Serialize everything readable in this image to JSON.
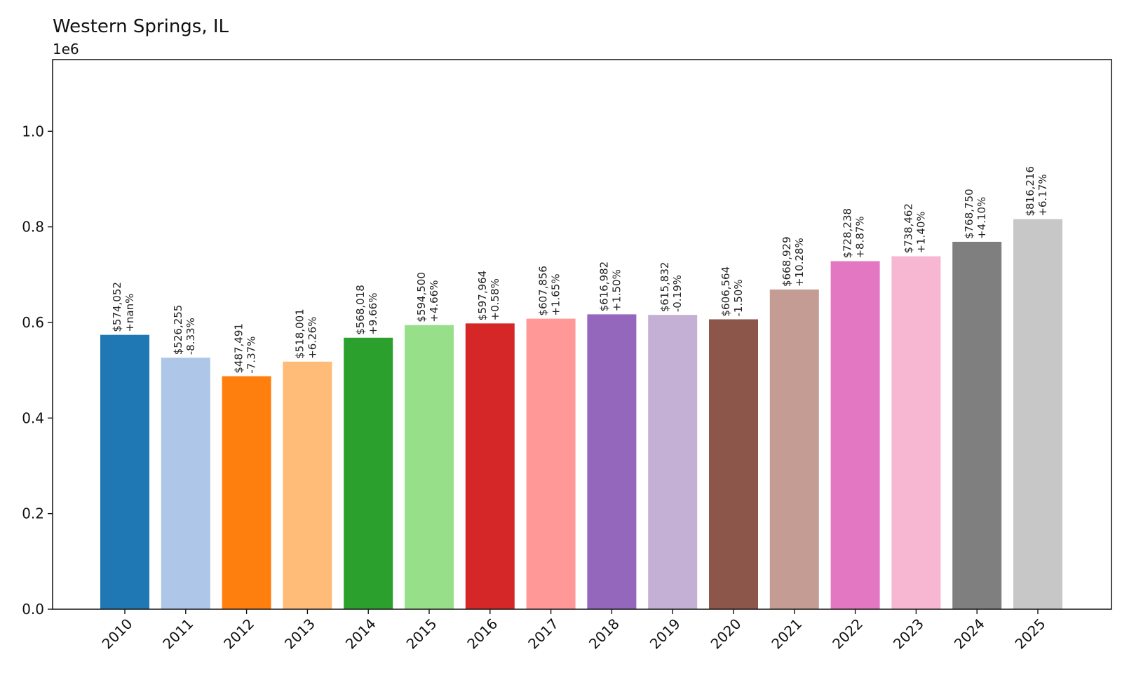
{
  "chart_data": {
    "type": "bar",
    "title": "Western Springs, IL",
    "xlabel": "",
    "ylabel": "",
    "y_offset_label": "1e6",
    "ylim": [
      0,
      1.15
    ],
    "y_ticks": [
      0.0,
      0.2,
      0.4,
      0.6,
      0.8,
      1.0
    ],
    "y_tick_labels": [
      "0.0",
      "0.2",
      "0.4",
      "0.6",
      "0.8",
      "1.0"
    ],
    "grid": false,
    "categories": [
      "2010",
      "2011",
      "2012",
      "2013",
      "2014",
      "2015",
      "2016",
      "2017",
      "2018",
      "2019",
      "2020",
      "2021",
      "2022",
      "2023",
      "2024",
      "2025"
    ],
    "values": [
      574052,
      526255,
      487491,
      518001,
      568018,
      594500,
      597964,
      607856,
      616982,
      615832,
      606564,
      668929,
      728238,
      738462,
      768750,
      816216
    ],
    "value_labels": [
      "$574,052",
      "$526,255",
      "$487,491",
      "$518,001",
      "$568,018",
      "$594,500",
      "$597,964",
      "$607,856",
      "$616,982",
      "$615,832",
      "$606,564",
      "$668,929",
      "$728,238",
      "$738,462",
      "$768,750",
      "$816,216"
    ],
    "change_labels": [
      "+nan%",
      "-8.33%",
      "-7.37%",
      "+6.26%",
      "+9.66%",
      "+4.66%",
      "+0.58%",
      "+1.65%",
      "+1.50%",
      "-0.19%",
      "-1.50%",
      "+10.28%",
      "+8.87%",
      "+1.40%",
      "+4.10%",
      "+6.17%"
    ],
    "colors": [
      "#1f77b4",
      "#aec7e8",
      "#ff7f0e",
      "#ffbb78",
      "#2ca02c",
      "#98df8a",
      "#d62728",
      "#ff9896",
      "#9467bd",
      "#c5b0d5",
      "#8c564b",
      "#c49c94",
      "#e377c2",
      "#f7b6d2",
      "#7f7f7f",
      "#c7c7c7"
    ]
  }
}
